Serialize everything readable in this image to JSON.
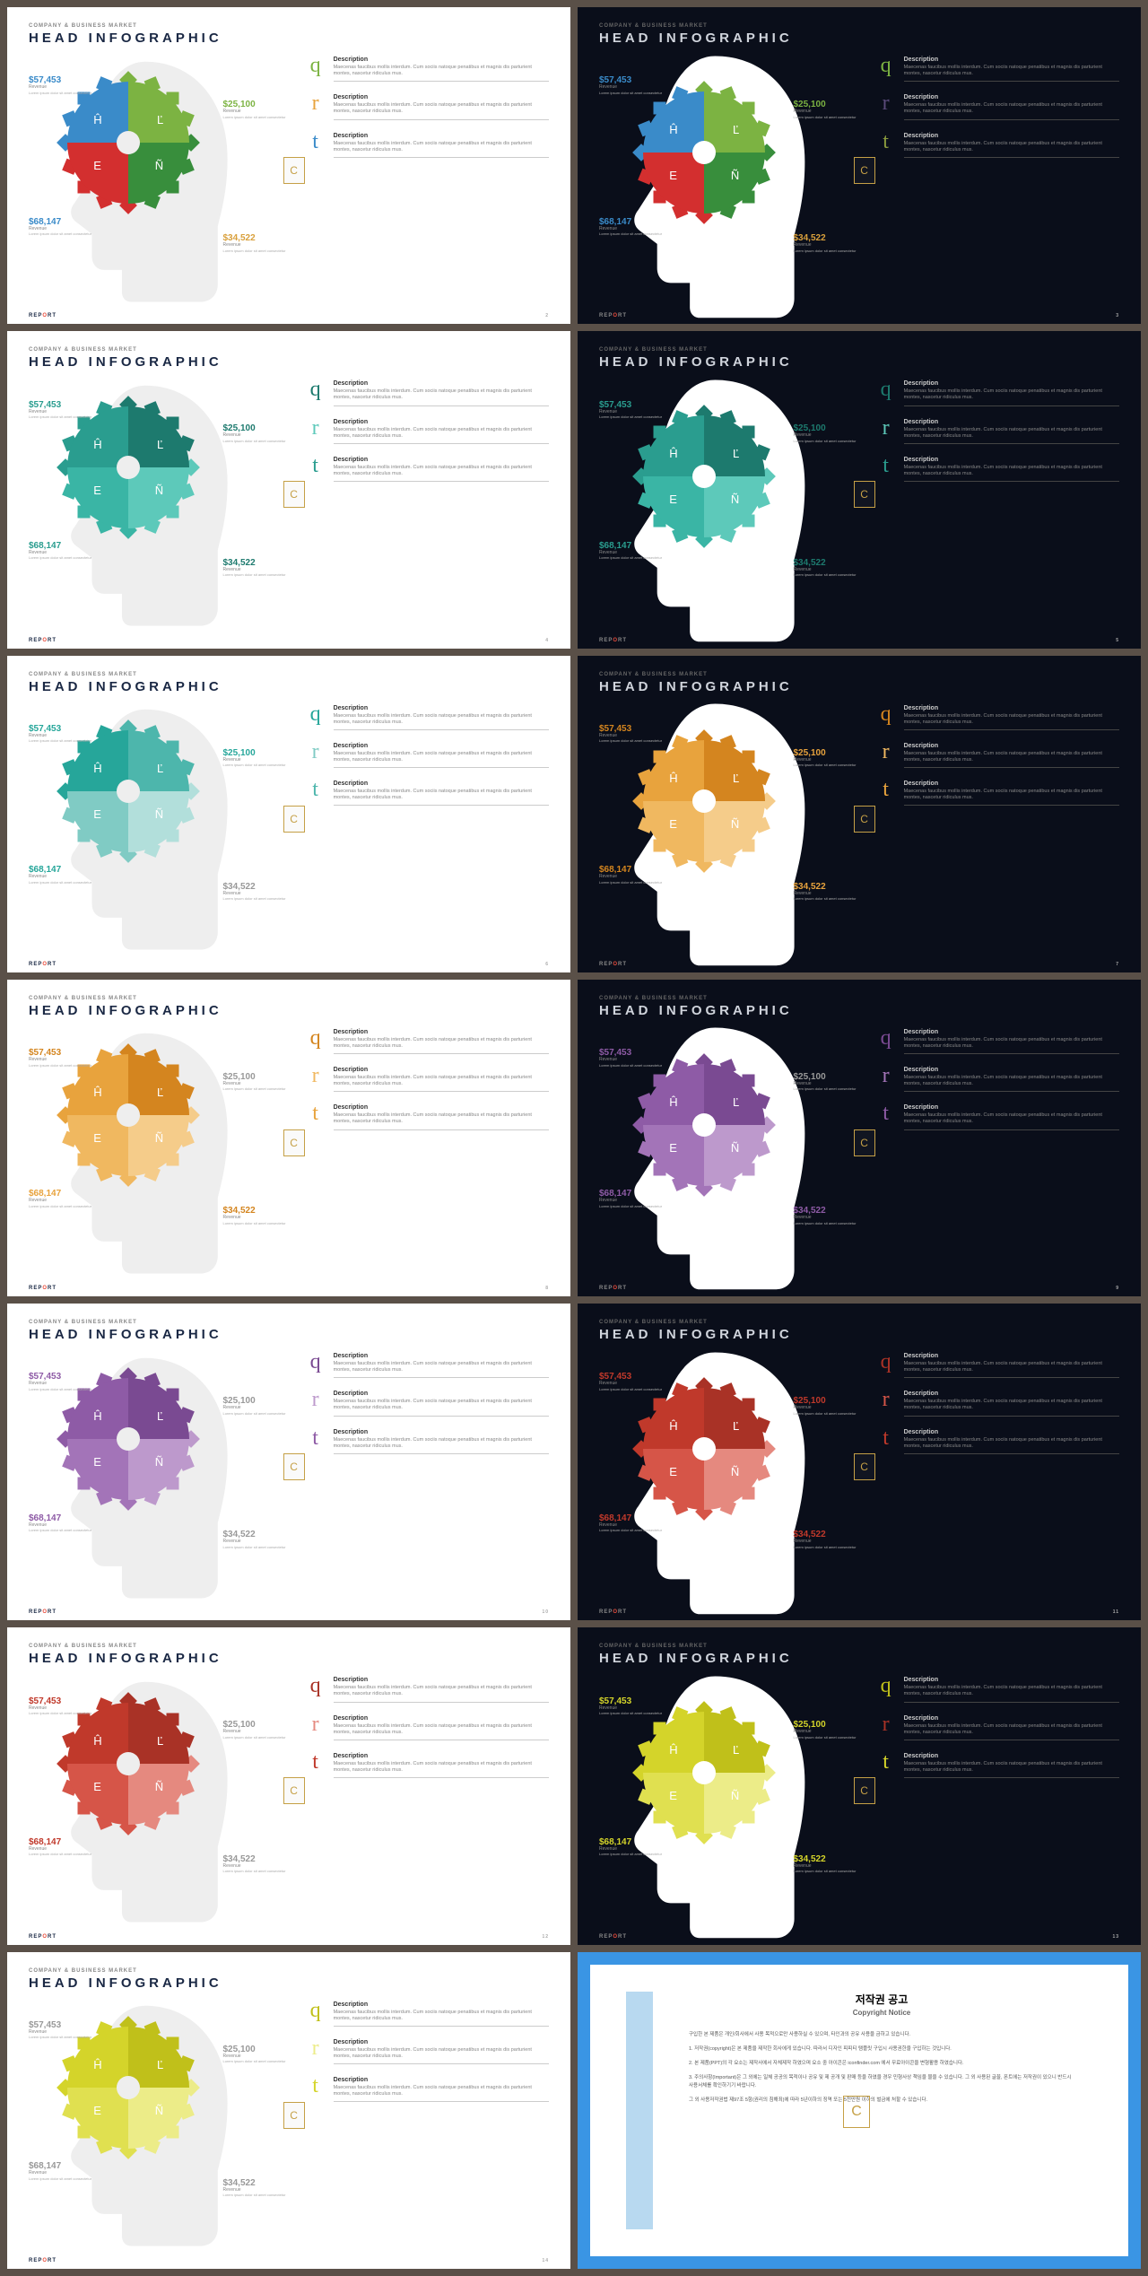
{
  "common": {
    "subtitle": "COMPANY & BUSINESS MARKET",
    "title": "HEAD INFOGRAPHIC",
    "footer_report": "REP",
    "footer_o": "O",
    "footer_rt": "RT",
    "badge": "C",
    "quad_labels": [
      "Ĥ",
      "Ľ",
      "E",
      "Ñ"
    ],
    "callouts": [
      {
        "value": "$57,453",
        "label": "Revenue",
        "desc": "Lorem ipsum dolor sit amet consectetur"
      },
      {
        "value": "$25,100",
        "label": "Revenue",
        "desc": "Lorem ipsum dolor sit amet consectetur"
      },
      {
        "value": "$68,147",
        "label": "Revenue",
        "desc": "Lorem ipsum dolor sit amet consectetur"
      },
      {
        "value": "$34,522",
        "label": "Revenue",
        "desc": "Lorem ipsum dolor sit amet consectetur"
      }
    ],
    "desc_title": "Description",
    "desc_body": "Maecenas faucibus mollis interdum. Cum sociis natoque penatibus et magnis dis parturient montes, nascetur ridiculus mus.",
    "head_light": "#eeeeee",
    "head_dark": "#ffffff"
  },
  "slides": [
    {
      "page": "2",
      "dark": false,
      "quads": [
        "#3a8bc9",
        "#7cb342",
        "#d32f2f",
        "#388e3c"
      ],
      "callout_colors": [
        "#3a8bc9",
        "#7cb342",
        "#3a8bc9",
        "#d9a03c"
      ],
      "icons": [
        {
          "ch": "q",
          "c": "#7cb342"
        },
        {
          "ch": "r",
          "c": "#e8a33d"
        },
        {
          "ch": "t",
          "c": "#3a8bc9"
        }
      ]
    },
    {
      "page": "3",
      "dark": true,
      "quads": [
        "#3a8bc9",
        "#7cb342",
        "#d32f2f",
        "#388e3c"
      ],
      "callout_colors": [
        "#3a8bc9",
        "#7cb342",
        "#3a8bc9",
        "#d9a03c"
      ],
      "icons": [
        {
          "ch": "q",
          "c": "#7cb342"
        },
        {
          "ch": "r",
          "c": "#5a4a7a"
        },
        {
          "ch": "t",
          "c": "#8a9a3d"
        }
      ]
    },
    {
      "page": "4",
      "dark": false,
      "quads": [
        "#2a9d8f",
        "#1d7a6e",
        "#3ab5a5",
        "#5dc9ba"
      ],
      "callout_colors": [
        "#2a9d8f",
        "#1d7a6e",
        "#2a9d8f",
        "#1d7a6e"
      ],
      "icons": [
        {
          "ch": "q",
          "c": "#1d7a6e"
        },
        {
          "ch": "r",
          "c": "#5dc9ba"
        },
        {
          "ch": "t",
          "c": "#2a9d8f"
        }
      ]
    },
    {
      "page": "5",
      "dark": true,
      "quads": [
        "#2a9d8f",
        "#1d7a6e",
        "#3ab5a5",
        "#5dc9ba"
      ],
      "callout_colors": [
        "#2a9d8f",
        "#1d7a6e",
        "#2a9d8f",
        "#1d7a6e"
      ],
      "icons": [
        {
          "ch": "q",
          "c": "#1d7a6e"
        },
        {
          "ch": "r",
          "c": "#5dc9ba"
        },
        {
          "ch": "t",
          "c": "#2a9d8f"
        }
      ]
    },
    {
      "page": "6",
      "dark": false,
      "quads": [
        "#26a69a",
        "#4db6ac",
        "#80cbc4",
        "#b2dfdb"
      ],
      "callout_colors": [
        "#26a69a",
        "#26a69a",
        "#26a69a",
        "#999"
      ],
      "icons": [
        {
          "ch": "q",
          "c": "#26a69a"
        },
        {
          "ch": "r",
          "c": "#80cbc4"
        },
        {
          "ch": "t",
          "c": "#4db6ac"
        }
      ]
    },
    {
      "page": "7",
      "dark": true,
      "quads": [
        "#e8a33d",
        "#d4851f",
        "#f0b860",
        "#f5cc8a"
      ],
      "callout_colors": [
        "#d4851f",
        "#e8a33d",
        "#d4851f",
        "#e8a33d"
      ],
      "icons": [
        {
          "ch": "q",
          "c": "#d4851f"
        },
        {
          "ch": "r",
          "c": "#f0b860"
        },
        {
          "ch": "t",
          "c": "#e8a33d"
        }
      ]
    },
    {
      "page": "8",
      "dark": false,
      "quads": [
        "#e8a33d",
        "#d4851f",
        "#f0b860",
        "#f5cc8a"
      ],
      "callout_colors": [
        "#d4851f",
        "#999",
        "#e8a33d",
        "#d4851f"
      ],
      "icons": [
        {
          "ch": "q",
          "c": "#d4851f"
        },
        {
          "ch": "r",
          "c": "#f0b860"
        },
        {
          "ch": "t",
          "c": "#e8a33d"
        }
      ]
    },
    {
      "page": "9",
      "dark": true,
      "quads": [
        "#8e5ba6",
        "#7a4a92",
        "#a374b8",
        "#bd99cc"
      ],
      "callout_colors": [
        "#8e5ba6",
        "#999",
        "#8e5ba6",
        "#8e5ba6"
      ],
      "icons": [
        {
          "ch": "q",
          "c": "#7a4a92"
        },
        {
          "ch": "r",
          "c": "#a374b8"
        },
        {
          "ch": "t",
          "c": "#8e5ba6"
        }
      ]
    },
    {
      "page": "10",
      "dark": false,
      "quads": [
        "#8e5ba6",
        "#7a4a92",
        "#a374b8",
        "#bd99cc"
      ],
      "callout_colors": [
        "#8e5ba6",
        "#999",
        "#8e5ba6",
        "#999"
      ],
      "icons": [
        {
          "ch": "q",
          "c": "#7a4a92"
        },
        {
          "ch": "r",
          "c": "#bd99cc"
        },
        {
          "ch": "t",
          "c": "#8e5ba6"
        }
      ]
    },
    {
      "page": "11",
      "dark": true,
      "quads": [
        "#c0392b",
        "#a93226",
        "#d65548",
        "#e5897f"
      ],
      "callout_colors": [
        "#c0392b",
        "#c0392b",
        "#c0392b",
        "#c0392b"
      ],
      "icons": [
        {
          "ch": "q",
          "c": "#a93226"
        },
        {
          "ch": "r",
          "c": "#d65548"
        },
        {
          "ch": "t",
          "c": "#c0392b"
        }
      ]
    },
    {
      "page": "12",
      "dark": false,
      "quads": [
        "#c0392b",
        "#a93226",
        "#d65548",
        "#e5897f"
      ],
      "callout_colors": [
        "#c0392b",
        "#999",
        "#c0392b",
        "#999"
      ],
      "icons": [
        {
          "ch": "q",
          "c": "#a93226"
        },
        {
          "ch": "r",
          "c": "#e5897f"
        },
        {
          "ch": "t",
          "c": "#c0392b"
        }
      ]
    },
    {
      "page": "13",
      "dark": true,
      "quads": [
        "#d4d42a",
        "#c0c01a",
        "#e0e050",
        "#ecec88"
      ],
      "callout_colors": [
        "#d4d42a",
        "#d4d42a",
        "#d4d42a",
        "#d4d42a"
      ],
      "icons": [
        {
          "ch": "q",
          "c": "#c0c01a"
        },
        {
          "ch": "r",
          "c": "#a93226"
        },
        {
          "ch": "t",
          "c": "#d4d42a"
        }
      ]
    },
    {
      "page": "14",
      "dark": false,
      "quads": [
        "#d4d42a",
        "#c0c01a",
        "#e0e050",
        "#ecec88"
      ],
      "callout_colors": [
        "#999",
        "#999",
        "#999",
        "#999"
      ],
      "icons": [
        {
          "ch": "q",
          "c": "#c0c01a"
        },
        {
          "ch": "r",
          "c": "#ecec88"
        },
        {
          "ch": "t",
          "c": "#d4d42a"
        }
      ]
    }
  ],
  "notice": {
    "title": "저작권 공고",
    "subtitle": "Copyright Notice",
    "p1": "구입한 본 제품은 개인/회사에서 사용 목적으로만 사용하실 수 있으며, 타인과의 공유 사용을 금하고 있습니다.",
    "p2": "1. 저작권(copyright)은 본 제품을 제작한 회사에게 있습니다. 따라서 디자인 피피티 탬플릿 구입시 사용권한을 구입하는 것입니다.",
    "p3": "2. 본 제품(PPT)의 각 요소는 제작사에서 자체제작 하였으며 요소 중 아이콘은 iconfinder.com 에서 무료아이콘을 변형활용 하였습니다.",
    "p4": "3. 주의사항(Important)은 그 외에는 일체 공공의 목적이나 공유 및 제 공개 및 판매 등을 하였을 경우 민형사상 책임을 물을 수 있습니다. 그 외 사용된 글꼴, 폰트에는 저작권이 있으니 반드시 사용서체를 확인하기기 바랍니다.",
    "p5": "그 외 사용저작권법 제97조 5항(권리의 침해죄)에 따라 5년이하의 징역 또는 5천만원 이하의 벌금에 처할 수 있습니다."
  }
}
